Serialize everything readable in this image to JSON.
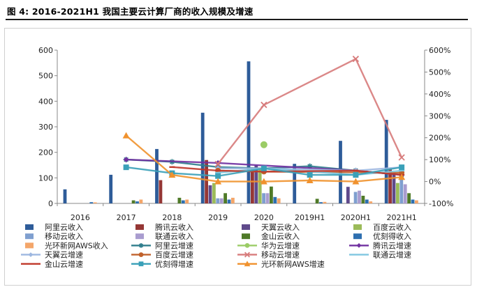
{
  "figure": {
    "title": "图 4: 2016-2021H1 我国主要云计算厂商的收入规模及增速"
  },
  "colors": {
    "阿里云收入": "#2e5c99",
    "腾讯云收入": "#953735",
    "天翼云收入": "#5f4a8b",
    "百度云收入": "#9bbb59",
    "移动云收入": "#7f9fcf",
    "联通云收入": "#a99ccf",
    "金山云收入": "#4f7a28",
    "优刻得收入": "#2e6fb0",
    "光环新网AWS收入": "#f4a66a",
    "阿里云增速": "#2e7d8c",
    "华为云增速": "#9bcc66",
    "腾讯云增速": "#7030a0",
    "移动云增速": "#d77b7b",
    "天翼云增速": "#9db7e0",
    "百度云增速": "#c0612b",
    "联通云增速": "#7fc6e0",
    "金山云增速": "#c0392b",
    "优刻得增速": "#3aa0b8",
    "光环新网AWS增速": "#f0922e"
  },
  "chart_data": {
    "type": "bar",
    "categories": [
      "2016",
      "2017",
      "2018",
      "2019",
      "2020",
      "2019H1",
      "2020H1",
      "2021H1"
    ],
    "ylim": [
      0,
      600
    ],
    "yticks": [
      "0",
      "100",
      "200",
      "300",
      "400",
      "500",
      "600"
    ],
    "y2lim": [
      -100,
      600
    ],
    "y2ticks": [
      "-100%",
      "0%",
      "100%",
      "200%",
      "300%",
      "400%",
      "500%",
      "600%"
    ],
    "bar_series": [
      {
        "name": "阿里云收入",
        "values": [
          55,
          112,
          213,
          355,
          556,
          155,
          245,
          327
        ]
      },
      {
        "name": "腾讯云收入",
        "values": [
          null,
          null,
          91,
          170,
          140,
          null,
          null,
          135
        ]
      },
      {
        "name": "天翼云收入",
        "values": [
          null,
          null,
          null,
          71,
          150,
          null,
          65,
          120
        ]
      },
      {
        "name": "百度云收入",
        "values": [
          null,
          null,
          null,
          80,
          140,
          null,
          null,
          80
        ]
      },
      {
        "name": "移动云收入",
        "values": [
          null,
          null,
          null,
          20,
          40,
          null,
          45,
          100
        ]
      },
      {
        "name": "联通云收入",
        "values": [
          null,
          null,
          null,
          20,
          40,
          null,
          50,
          75
        ]
      },
      {
        "name": "金山云收入",
        "values": [
          null,
          12,
          22,
          40,
          66,
          18,
          30,
          40
        ]
      },
      {
        "name": "优刻得收入",
        "values": [
          5,
          8,
          12,
          15,
          25,
          5,
          15,
          15
        ]
      },
      {
        "name": "光环新网AWS收入",
        "values": [
          4,
          15,
          15,
          22,
          20,
          6,
          8,
          12
        ]
      }
    ],
    "line_series": [
      {
        "name": "阿里云增速",
        "marker": "star",
        "values": [
          null,
          100,
          90,
          66,
          60,
          70,
          50,
          30
        ]
      },
      {
        "name": "腾讯云增速",
        "marker": "diamond",
        "values": [
          null,
          100,
          null,
          85,
          null,
          null,
          50,
          30
        ]
      },
      {
        "name": "华为云增速",
        "marker": "circle",
        "values": [
          null,
          null,
          null,
          null,
          168,
          null,
          null,
          null
        ]
      },
      {
        "name": "天翼云增速",
        "marker": "diamond",
        "values": [
          null,
          null,
          null,
          60,
          60,
          null,
          50,
          65
        ]
      },
      {
        "name": "百度云增速",
        "marker": "circle",
        "values": [
          null,
          null,
          null,
          50,
          45,
          null,
          null,
          40
        ]
      },
      {
        "name": "移动云增速",
        "marker": "x",
        "values": [
          null,
          null,
          null,
          80,
          350,
          null,
          560,
          110
        ]
      },
      {
        "name": "联通云增速",
        "marker": "dash",
        "values": [
          null,
          null,
          null,
          40,
          60,
          null,
          30,
          50
        ]
      },
      {
        "name": "金山云增速",
        "marker": "dash",
        "values": [
          null,
          null,
          66,
          50,
          45,
          null,
          50,
          30
        ]
      },
      {
        "name": "优刻得增速",
        "marker": "square",
        "values": [
          null,
          65,
          38,
          25,
          60,
          30,
          30,
          65
        ]
      },
      {
        "name": "光环新网AWS增速",
        "marker": "triangle",
        "values": [
          null,
          210,
          30,
          0,
          0,
          5,
          0,
          20
        ]
      }
    ],
    "legend": {
      "placement": "bottom",
      "entries": [
        {
          "name": "阿里云收入",
          "kind": "bar"
        },
        {
          "name": "腾讯云收入",
          "kind": "bar"
        },
        {
          "name": "天翼云收入",
          "kind": "bar"
        },
        {
          "name": "百度云收入",
          "kind": "bar"
        },
        {
          "name": "移动云收入",
          "kind": "bar"
        },
        {
          "name": "联通云收入",
          "kind": "bar"
        },
        {
          "name": "金山云收入",
          "kind": "bar"
        },
        {
          "name": "优刻得收入",
          "kind": "bar"
        },
        {
          "name": "光环新网AWS收入",
          "kind": "bar"
        },
        {
          "name": "阿里云增速",
          "kind": "line",
          "marker": "star"
        },
        {
          "name": "华为云增速",
          "kind": "line",
          "marker": "circle"
        },
        {
          "name": "腾讯云增速",
          "kind": "line",
          "marker": "diamond"
        },
        {
          "name": "天翼云增速",
          "kind": "line",
          "marker": "diamond"
        },
        {
          "name": "百度云增速",
          "kind": "line",
          "marker": "circle"
        },
        {
          "name": "移动云增速",
          "kind": "line",
          "marker": "x"
        },
        {
          "name": "联通云增速",
          "kind": "line",
          "marker": "none"
        },
        {
          "name": "金山云增速",
          "kind": "line",
          "marker": "none"
        },
        {
          "name": "优刻得增速",
          "kind": "line",
          "marker": "square"
        },
        {
          "name": "光环新网AWS增速",
          "kind": "line",
          "marker": "triangle"
        }
      ]
    },
    "grid": false
  }
}
